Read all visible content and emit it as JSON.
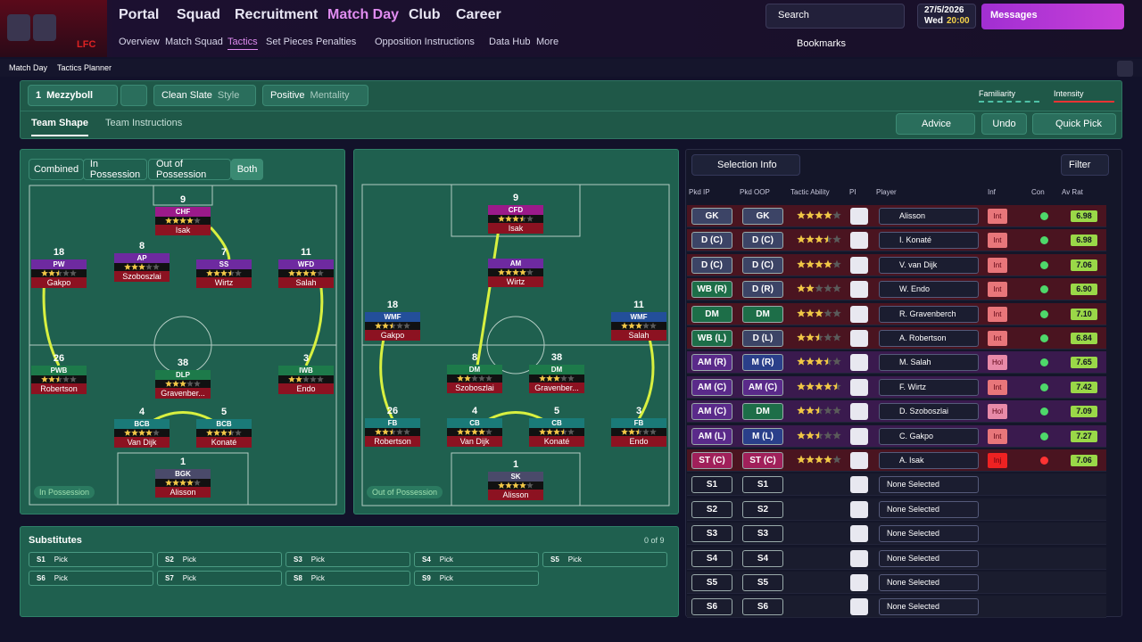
{
  "nav": {
    "logo": "LFC",
    "items": [
      "Portal",
      "Squad",
      "Recruitment",
      "Match Day",
      "Club",
      "Career"
    ],
    "active": 3,
    "sub_items": [
      "Overview",
      "Match Squad",
      "Tactics",
      "Set Pieces",
      "Penalties",
      "Opposition Instructions",
      "Data Hub",
      "More"
    ],
    "sub_active": 2,
    "search": "Search",
    "date": "27/5/2026",
    "day": "Wed",
    "time": "20:00",
    "messages": "Messages",
    "bookmarks": "Bookmarks"
  },
  "breadcrumb": [
    "Match Day",
    "Tactics Planner"
  ],
  "tactic": {
    "slot": "1",
    "name": "Mezzyboll",
    "style": "Clean Slate",
    "style_label": "Style",
    "mentality": "Positive",
    "mentality_label": "Mentality",
    "familiarity": "Familiarity",
    "intensity": "Intensity"
  },
  "tabs": [
    "Team Shape",
    "Team Instructions"
  ],
  "actions": [
    "Advice",
    "Undo",
    "Quick Pick"
  ],
  "phase_toggle": [
    "Combined",
    "In Possession",
    "Out of Possession",
    "Both"
  ],
  "pitches": [
    {
      "label": "In Possession",
      "players": [
        {
          "number": 9,
          "role": "CHF",
          "name": "Isak",
          "stars": 4
        },
        {
          "number": 8,
          "role": "AP",
          "name": "Szoboszlai",
          "stars": 3
        },
        {
          "number": 7,
          "role": "SS",
          "name": "Wirtz",
          "stars": 3.5
        },
        {
          "number": 18,
          "role": "PW",
          "name": "Gakpo",
          "stars": 2.5
        },
        {
          "number": 11,
          "role": "WFD",
          "name": "Salah",
          "stars": 4
        },
        {
          "number": 26,
          "role": "PWB",
          "name": "Robertson",
          "stars": 2.5
        },
        {
          "number": 38,
          "role": "DLP",
          "name": "Gravenber...",
          "stars": 3
        },
        {
          "number": 3,
          "role": "IWB",
          "name": "Endo",
          "stars": 2
        },
        {
          "number": 4,
          "role": "BCB",
          "name": "Van Dijk",
          "stars": 4
        },
        {
          "number": 5,
          "role": "BCB",
          "name": "Konaté",
          "stars": 3.5
        },
        {
          "number": 1,
          "role": "BGK",
          "name": "Alisson",
          "stars": 4
        }
      ]
    },
    {
      "label": "Out of Possession",
      "players": [
        {
          "number": 9,
          "role": "CFD",
          "name": "Isak",
          "stars": 3.5
        },
        {
          "number": null,
          "role": "AM",
          "name": "Wirtz",
          "stars": 4
        },
        {
          "number": 18,
          "role": "WMF",
          "name": "Gakpo",
          "stars": 2.5
        },
        {
          "number": 11,
          "role": "WMF",
          "name": "Salah",
          "stars": 3
        },
        {
          "number": 8,
          "role": "DM",
          "name": "Szoboszlai",
          "stars": 2
        },
        {
          "number": 38,
          "role": "DM",
          "name": "Gravenber...",
          "stars": 3
        },
        {
          "number": 26,
          "role": "FB",
          "name": "Robertson",
          "stars": 2.5
        },
        {
          "number": 4,
          "role": "CB",
          "name": "Van Dijk",
          "stars": 4
        },
        {
          "number": 5,
          "role": "CB",
          "name": "Konaté",
          "stars": 3.5
        },
        {
          "number": 3,
          "role": "FB",
          "name": "Endo",
          "stars": 2.5
        },
        {
          "number": 1,
          "role": "SK",
          "name": "Alisson",
          "stars": 4
        }
      ]
    }
  ],
  "substitutes": {
    "title": "Substitutes",
    "count": "0 of 9",
    "slots": [
      {
        "slot": "S1",
        "value": "Pick"
      },
      {
        "slot": "S2",
        "value": "Pick"
      },
      {
        "slot": "S3",
        "value": "Pick"
      },
      {
        "slot": "S4",
        "value": "Pick"
      },
      {
        "slot": "S5",
        "value": "Pick"
      },
      {
        "slot": "S6",
        "value": "Pick"
      },
      {
        "slot": "S7",
        "value": "Pick"
      },
      {
        "slot": "S8",
        "value": "Pick"
      },
      {
        "slot": "S9",
        "value": "Pick"
      }
    ]
  },
  "selection": {
    "title": "Selection Info",
    "filter": "Filter",
    "columns": [
      "Pkd IP",
      "Pkd OOP",
      "Tactic Ability",
      "PI",
      "Player",
      "Inf",
      "Con",
      "Av Rat"
    ],
    "rows": [
      {
        "ip": "GK",
        "oop": "GK",
        "stars": 4,
        "player": "Alisson",
        "inf": "Int",
        "rating": "6.98"
      },
      {
        "ip": "D (C)",
        "oop": "D (C)",
        "stars": 3.5,
        "player": "I. Konaté",
        "inf": "Int",
        "rating": "6.98"
      },
      {
        "ip": "D (C)",
        "oop": "D (C)",
        "stars": 4,
        "player": "V. van Dijk",
        "inf": "Int",
        "rating": "7.06"
      },
      {
        "ip": "WB (R)",
        "oop": "D (R)",
        "stars": 2,
        "player": "W. Endo",
        "inf": "Int",
        "rating": "6.90"
      },
      {
        "ip": "DM",
        "oop": "DM",
        "stars": 3,
        "player": "R. Gravenberch",
        "inf": "Int",
        "rating": "7.10"
      },
      {
        "ip": "WB (L)",
        "oop": "D (L)",
        "stars": 2.5,
        "player": "A. Robertson",
        "inf": "Int",
        "rating": "6.84"
      },
      {
        "ip": "AM (R)",
        "oop": "M (R)",
        "stars": 3.5,
        "player": "M. Salah",
        "inf": "Hol",
        "rating": "7.65"
      },
      {
        "ip": "AM (C)",
        "oop": "AM (C)",
        "stars": 4.5,
        "player": "F. Wirtz",
        "inf": "Int",
        "rating": "7.42"
      },
      {
        "ip": "AM (C)",
        "oop": "DM",
        "stars": 2.5,
        "player": "D. Szoboszlai",
        "inf": "Hol",
        "rating": "7.09"
      },
      {
        "ip": "AM (L)",
        "oop": "M (L)",
        "stars": 2.5,
        "player": "C. Gakpo",
        "inf": "Int",
        "rating": "7.27"
      },
      {
        "ip": "ST (C)",
        "oop": "ST (C)",
        "stars": 4,
        "player": "A. Isak",
        "inf": "Inj",
        "rating": "7.06"
      }
    ],
    "subs": [
      {
        "ip": "S1",
        "oop": "S1",
        "player": "None Selected"
      },
      {
        "ip": "S2",
        "oop": "S2",
        "player": "None Selected"
      },
      {
        "ip": "S3",
        "oop": "S3",
        "player": "None Selected"
      },
      {
        "ip": "S4",
        "oop": "S4",
        "player": "None Selected"
      },
      {
        "ip": "S5",
        "oop": "S5",
        "player": "None Selected"
      },
      {
        "ip": "S6",
        "oop": "S6",
        "player": "None Selected"
      }
    ]
  }
}
